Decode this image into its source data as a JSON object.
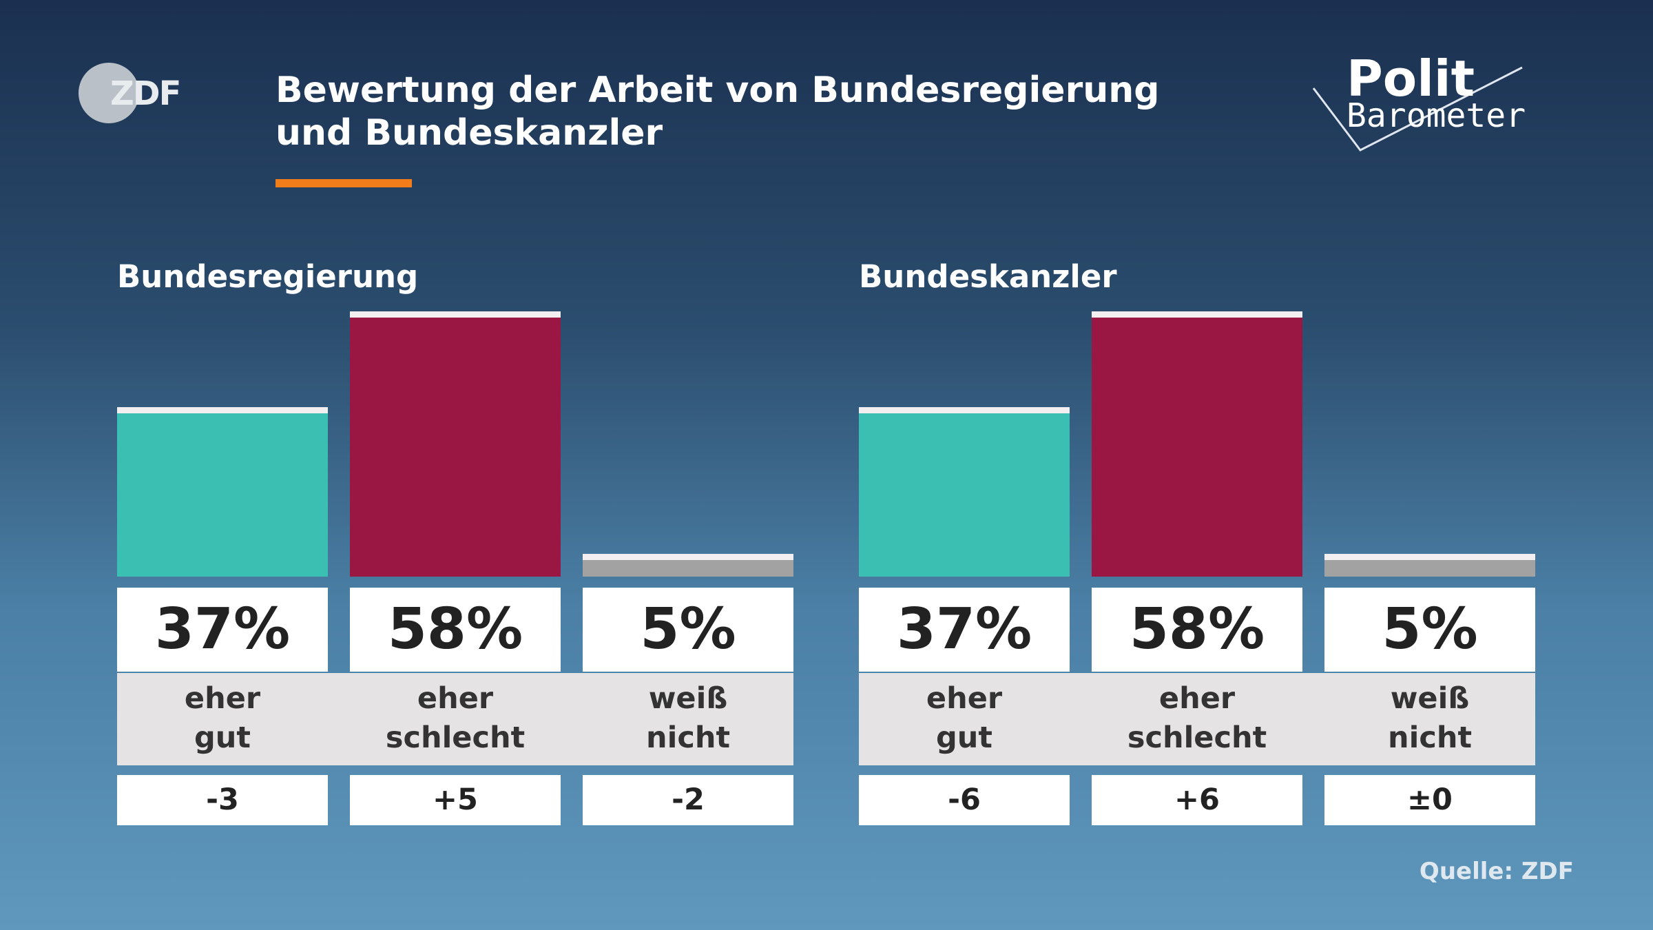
{
  "header": {
    "logo": "ZDF",
    "title": "Bewertung der Arbeit von Bundesregierung und Bundeskanzler",
    "brand_top": "Polit",
    "brand_bottom": "Barometer"
  },
  "source": "Quelle: ZDF",
  "chart_data": [
    {
      "type": "bar",
      "title": "Bundesregierung",
      "categories": [
        "eher gut",
        "eher schlecht",
        "weiß nicht"
      ],
      "values": [
        37,
        58,
        5
      ],
      "value_labels": [
        "37%",
        "58%",
        "5%"
      ],
      "change_labels": [
        "-3",
        "+5",
        "-2"
      ],
      "colors": [
        "#3bbfb2",
        "#9a1744",
        "#a2a2a2"
      ],
      "ylim": [
        0,
        58
      ]
    },
    {
      "type": "bar",
      "title": "Bundeskanzler",
      "categories": [
        "eher gut",
        "eher schlecht",
        "weiß nicht"
      ],
      "values": [
        37,
        58,
        5
      ],
      "value_labels": [
        "37%",
        "58%",
        "5%"
      ],
      "change_labels": [
        "-6",
        "+6",
        "±0"
      ],
      "colors": [
        "#3bbfb2",
        "#9a1744",
        "#a2a2a2"
      ],
      "ylim": [
        0,
        58
      ]
    }
  ]
}
